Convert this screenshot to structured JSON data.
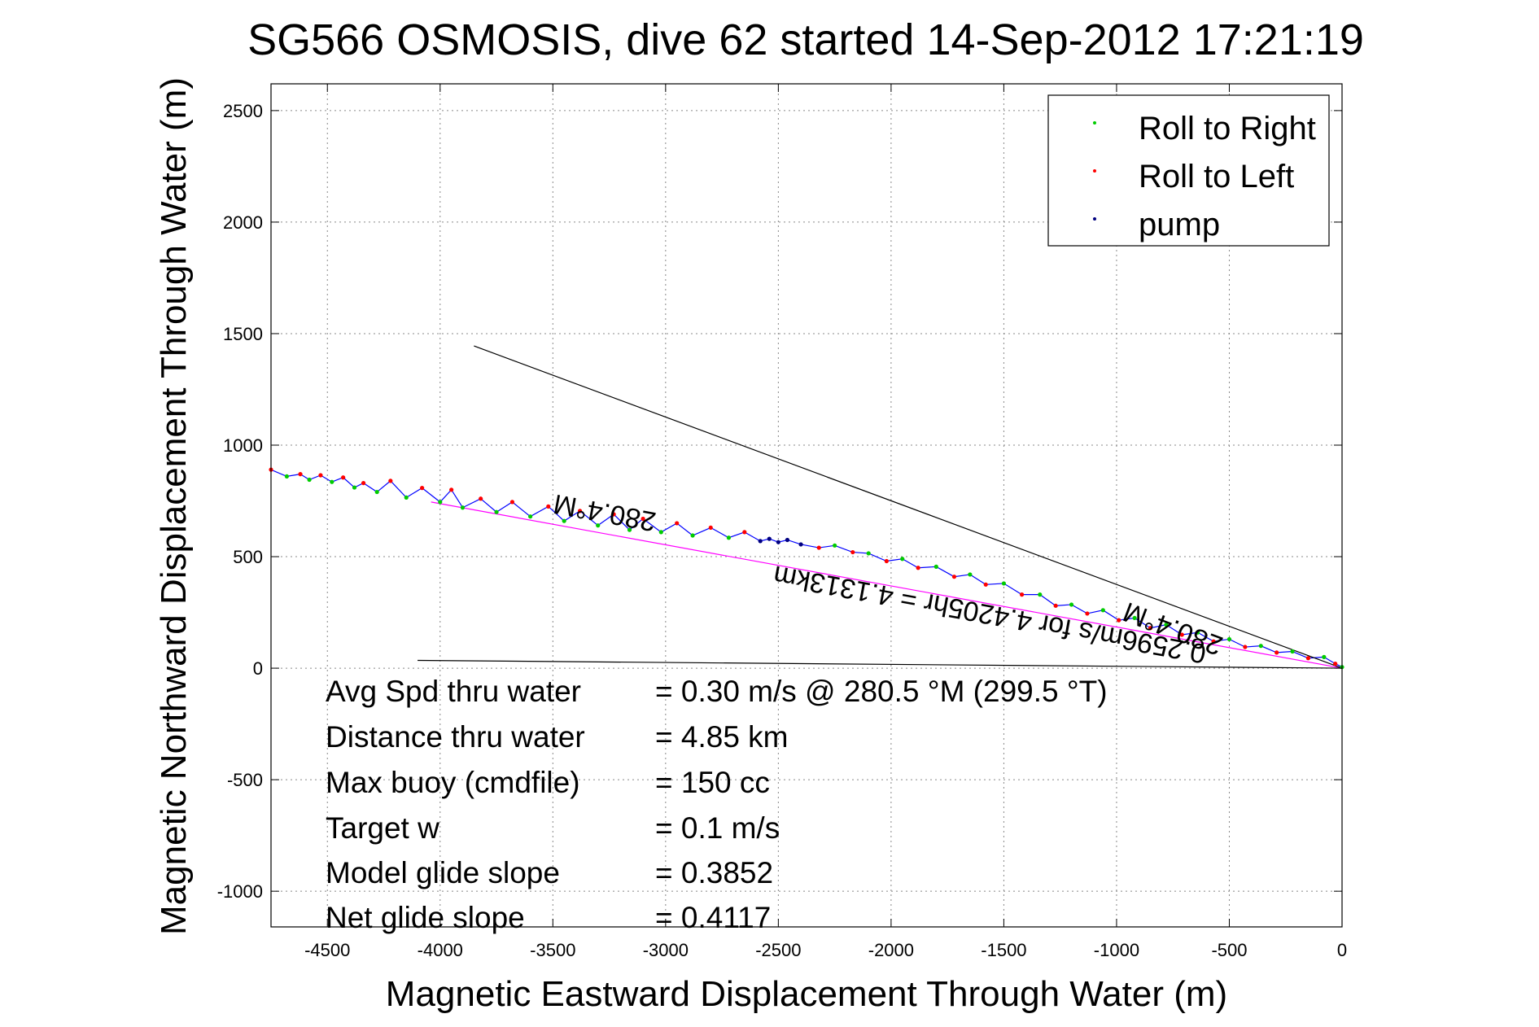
{
  "chart_data": {
    "type": "line",
    "title": "SG566 OSMOSIS, dive 62 started 14-Sep-2012 17:21:19",
    "xlabel": "Magnetic Eastward Displacement Through Water (m)",
    "ylabel": "Magnetic Northward Displacement Through Water (m)",
    "xlim": [
      -4750,
      0
    ],
    "ylim": [
      -1160,
      2620
    ],
    "xticks": [
      -4500,
      -4000,
      -3500,
      -3000,
      -2500,
      -2000,
      -1500,
      -1000,
      -500,
      0
    ],
    "yticks": [
      -1000,
      -500,
      0,
      500,
      1000,
      1500,
      2000,
      2500
    ],
    "xtick_labels": [
      "-4500",
      "-4000",
      "-3500",
      "-3000",
      "-2500",
      "-2000",
      "-1500",
      "-1000",
      "-500",
      "0"
    ],
    "ytick_labels": [
      "-1000",
      "-500",
      "0",
      "500",
      "1000",
      "1500",
      "2000",
      "2500"
    ],
    "grid": true,
    "legend_position": "top-right",
    "legend": [
      {
        "label": "Roll to Right",
        "color": "#00cc00"
      },
      {
        "label": "Roll to Left",
        "color": "#ff0000"
      },
      {
        "label": "pump",
        "color": "#000080"
      }
    ],
    "series": [
      {
        "color": "#0000ff",
        "x": [
          -4750,
          -4680,
          -4620,
          -4580,
          -4530,
          -4480,
          -4430,
          -4380,
          -4340,
          -4280,
          -4220,
          -4150,
          -4080,
          -4000,
          -3950,
          -3900,
          -3820,
          -3750,
          -3680,
          -3600,
          -3520,
          -3450,
          -3380,
          -3300,
          -3230,
          -3160,
          -3100,
          -3020,
          -2950,
          -2880,
          -2800,
          -2720,
          -2650,
          -2580,
          -2540,
          -2500,
          -2460,
          -2400,
          -2320,
          -2250,
          -2170,
          -2100,
          -2020,
          -1950,
          -1880,
          -1800,
          -1720,
          -1650,
          -1580,
          -1500,
          -1420,
          -1340,
          -1270,
          -1200,
          -1130,
          -1060,
          -990,
          -920,
          -850,
          -780,
          -710,
          -640,
          -570,
          -500,
          -430,
          -360,
          -290,
          -220,
          -150,
          -80,
          -30,
          0
        ],
        "y": [
          890,
          860,
          870,
          845,
          865,
          835,
          855,
          810,
          830,
          790,
          840,
          765,
          808,
          745,
          800,
          720,
          760,
          700,
          745,
          680,
          725,
          660,
          705,
          640,
          690,
          620,
          670,
          610,
          650,
          595,
          630,
          585,
          610,
          570,
          580,
          565,
          575,
          555,
          540,
          550,
          520,
          515,
          480,
          490,
          450,
          455,
          410,
          420,
          375,
          380,
          330,
          330,
          280,
          285,
          245,
          260,
          215,
          225,
          180,
          195,
          150,
          160,
          120,
          130,
          95,
          100,
          70,
          75,
          45,
          50,
          20,
          5
        ]
      },
      {
        "color": "#ff00ff",
        "x": [
          -4040,
          0
        ],
        "y": [
          745,
          0
        ]
      },
      {
        "color": "#000000",
        "x": [
          -3850,
          0
        ],
        "y": [
          1445,
          0
        ]
      },
      {
        "color": "#000000",
        "x": [
          -4100,
          0
        ],
        "y": [
          35,
          0
        ]
      }
    ],
    "rotated_labels": [
      "280.4°M",
      "0.2596m/s for 4.4205hr = 4.1313km",
      "280.4°M"
    ],
    "annotations": [
      {
        "label": "Avg Spd thru water",
        "value": "=  0.30 m/s @ 280.5 °M (299.5 °T)"
      },
      {
        "label": "Distance thru water",
        "value": "=  4.85 km"
      },
      {
        "label": "Max buoy (cmdfile)",
        "value": "= 150 cc"
      },
      {
        "label": "Target w",
        "value": "= 0.1 m/s"
      },
      {
        "label": "Model glide slope",
        "value": "= 0.3852"
      },
      {
        "label": "Net glide slope",
        "value": "= 0.4117"
      }
    ]
  }
}
